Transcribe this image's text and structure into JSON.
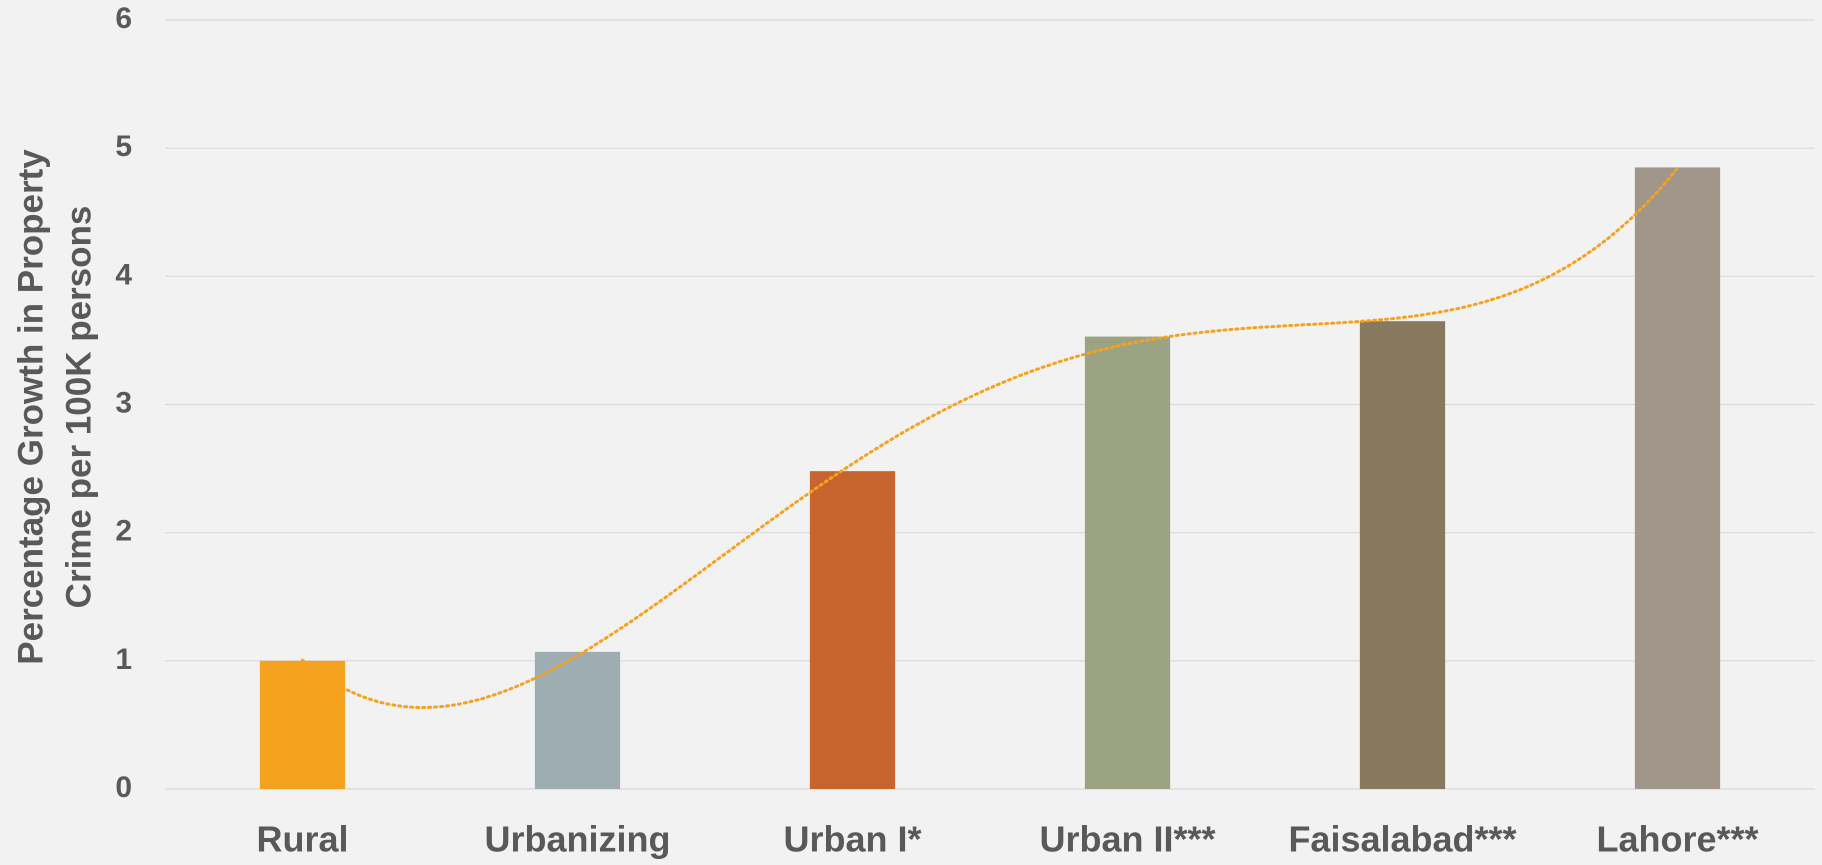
{
  "chart_data": {
    "type": "bar",
    "ylabel": [
      "Percentage Growth in Property",
      "Crime per 100K persons"
    ],
    "categories": [
      "Rural",
      "Urbanizing",
      "Urban I*",
      "Urban II***",
      "Faisalabad***",
      "Lahore***"
    ],
    "values": [
      1.0,
      1.07,
      2.48,
      3.53,
      3.65,
      4.85
    ],
    "colors": [
      "#f5a31f",
      "#9dadb2",
      "#c8652f",
      "#9ca383",
      "#86795d",
      "#a0978a"
    ],
    "ylim": [
      0,
      6
    ],
    "yticks": [
      0,
      1,
      2,
      3,
      4,
      5,
      6
    ],
    "grid": true,
    "trendline": {
      "type": "polynomial",
      "order": 4,
      "color": "#f5a31f"
    }
  }
}
